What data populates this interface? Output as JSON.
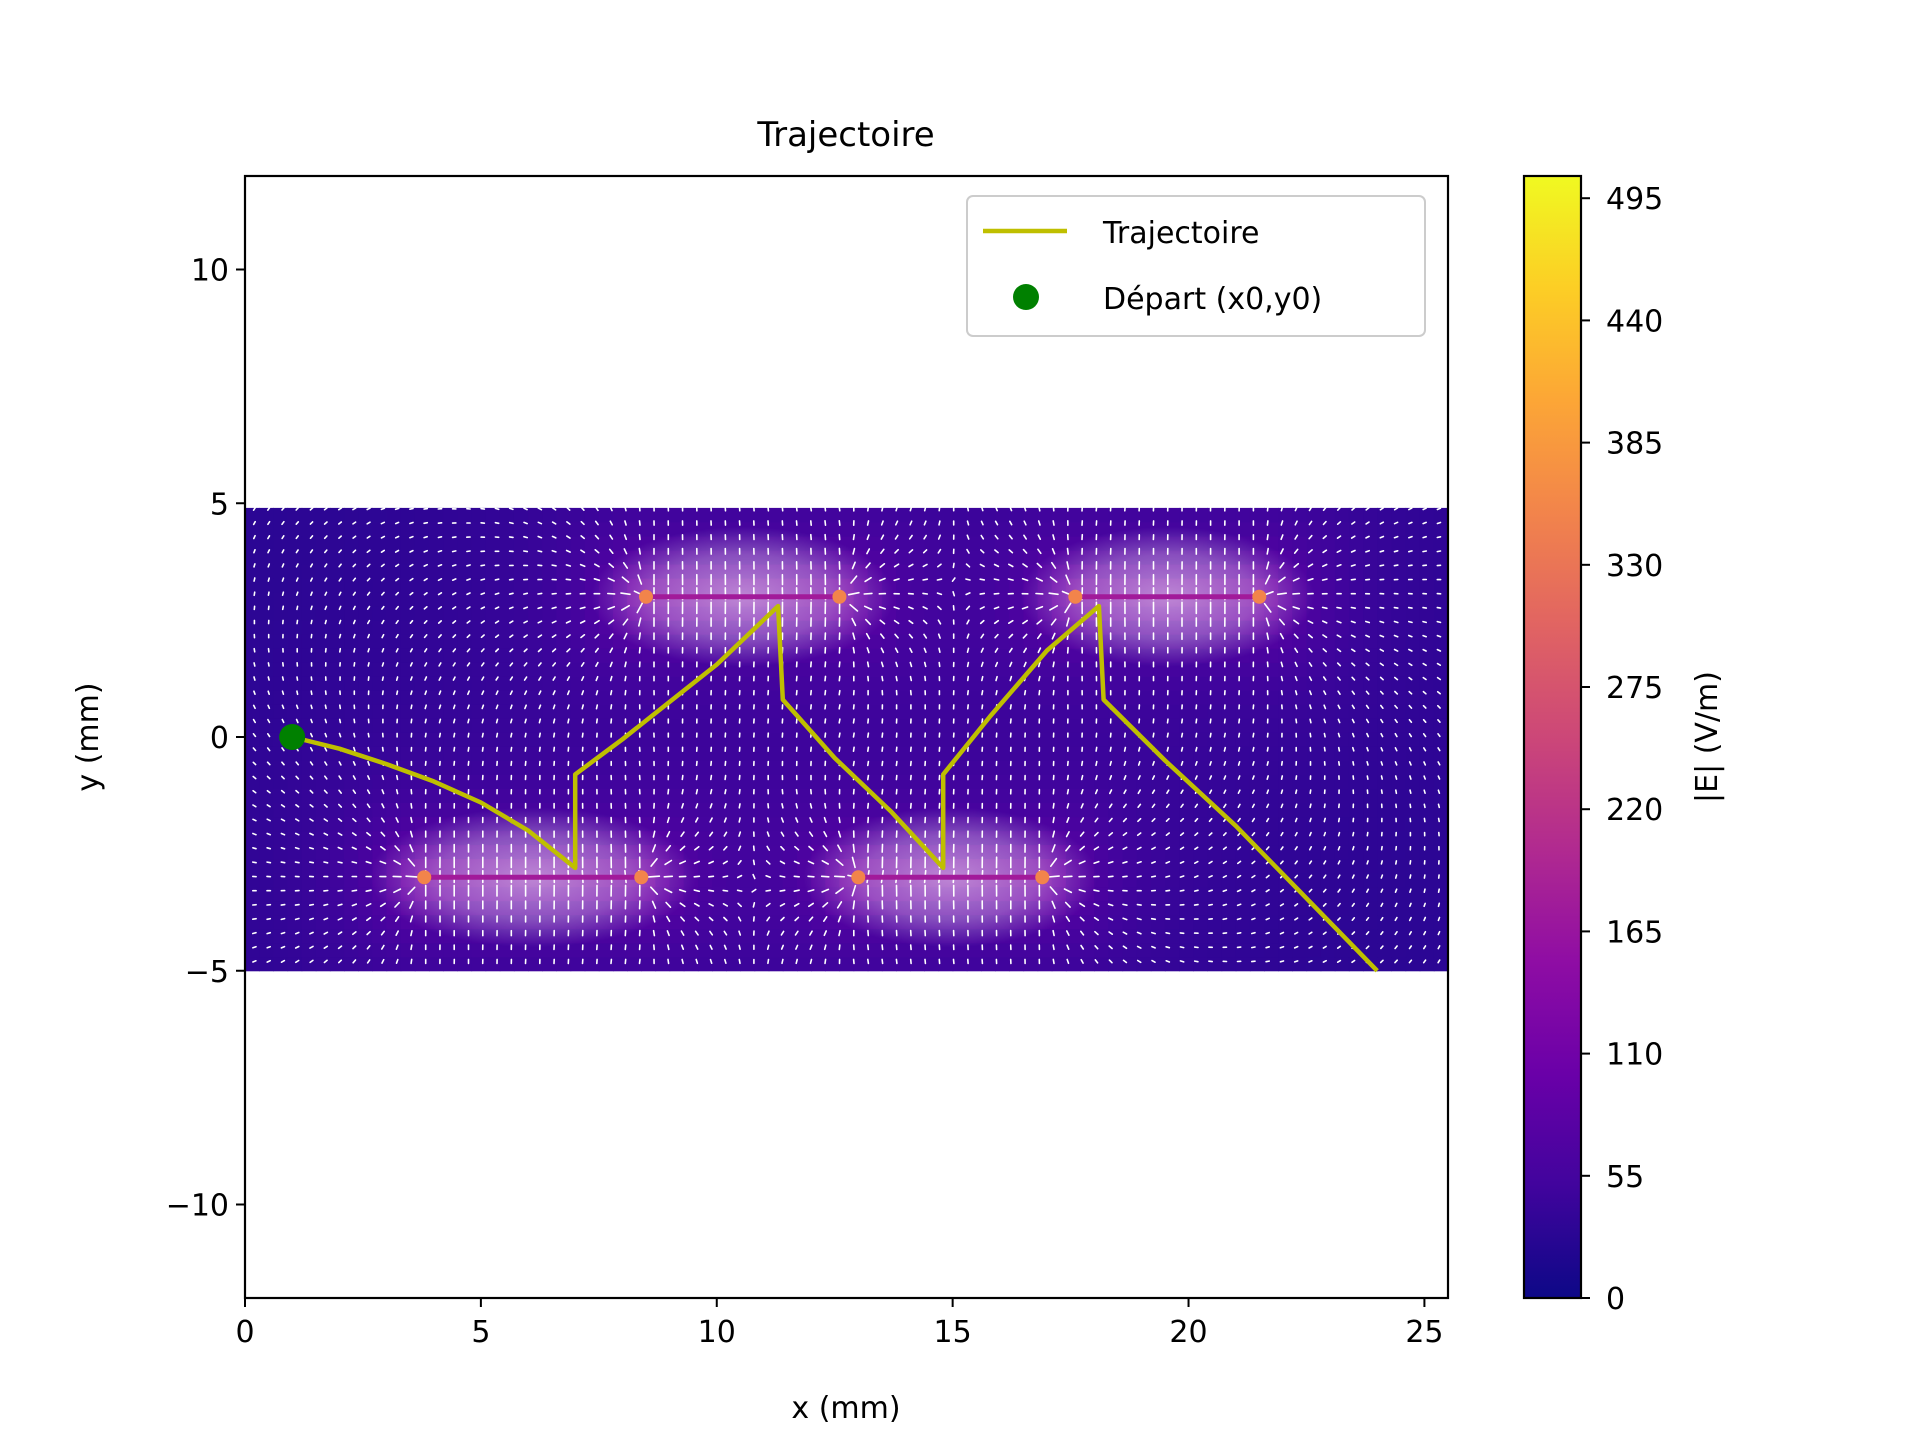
{
  "chart_data": {
    "type": "line",
    "title": "Trajectoire",
    "xlabel": "x (mm)",
    "ylabel": "y (mm)",
    "xlim": [
      0,
      25.5
    ],
    "ylim": [
      -12,
      12
    ],
    "xticks": [
      0,
      5,
      10,
      15,
      20,
      25
    ],
    "yticks": [
      10,
      5,
      0,
      -5,
      -10
    ],
    "ytick_labels": [
      "10",
      "5",
      "0",
      "−5",
      "−10"
    ],
    "grid": false,
    "legend_position": "upper right",
    "field": {
      "x_range": [
        0,
        25.5
      ],
      "y_range": [
        -5,
        5
      ],
      "description_colorbar_label": "|E| (V/m)",
      "colorbar_range": [
        0,
        505
      ],
      "colorbar_ticks": [
        0,
        55,
        110,
        165,
        220,
        275,
        330,
        385,
        440,
        495
      ],
      "colormap": "plasma",
      "plates": [
        {
          "x": [
            3.8,
            8.4
          ],
          "y": -3
        },
        {
          "x": [
            8.5,
            12.6
          ],
          "y": 3
        },
        {
          "x": [
            13.0,
            16.9
          ],
          "y": -3
        },
        {
          "x": [
            17.6,
            21.5
          ],
          "y": 3
        }
      ]
    },
    "series": [
      {
        "name": "Trajectoire",
        "color": "#bfbf00",
        "points": [
          [
            1.0,
            0.0
          ],
          [
            2.0,
            -0.25
          ],
          [
            3.0,
            -0.58
          ],
          [
            4.0,
            -0.95
          ],
          [
            5.0,
            -1.4
          ],
          [
            6.0,
            -2.0
          ],
          [
            7.0,
            -2.8
          ],
          [
            7.0,
            -0.8
          ],
          [
            8.0,
            -0.05
          ],
          [
            9.0,
            0.75
          ],
          [
            10.0,
            1.55
          ],
          [
            11.3,
            2.8
          ],
          [
            11.4,
            0.8
          ],
          [
            12.5,
            -0.45
          ],
          [
            13.7,
            -1.6
          ],
          [
            14.8,
            -2.8
          ],
          [
            14.8,
            -0.8
          ],
          [
            15.8,
            0.45
          ],
          [
            17.0,
            1.85
          ],
          [
            18.1,
            2.8
          ],
          [
            18.2,
            0.8
          ],
          [
            19.5,
            -0.5
          ],
          [
            21.0,
            -1.9
          ],
          [
            22.5,
            -3.45
          ],
          [
            24.0,
            -5.0
          ]
        ]
      },
      {
        "name": "Départ (x0,y0)",
        "color": "#008000",
        "points": [
          [
            1.0,
            0.0
          ]
        ]
      }
    ]
  }
}
